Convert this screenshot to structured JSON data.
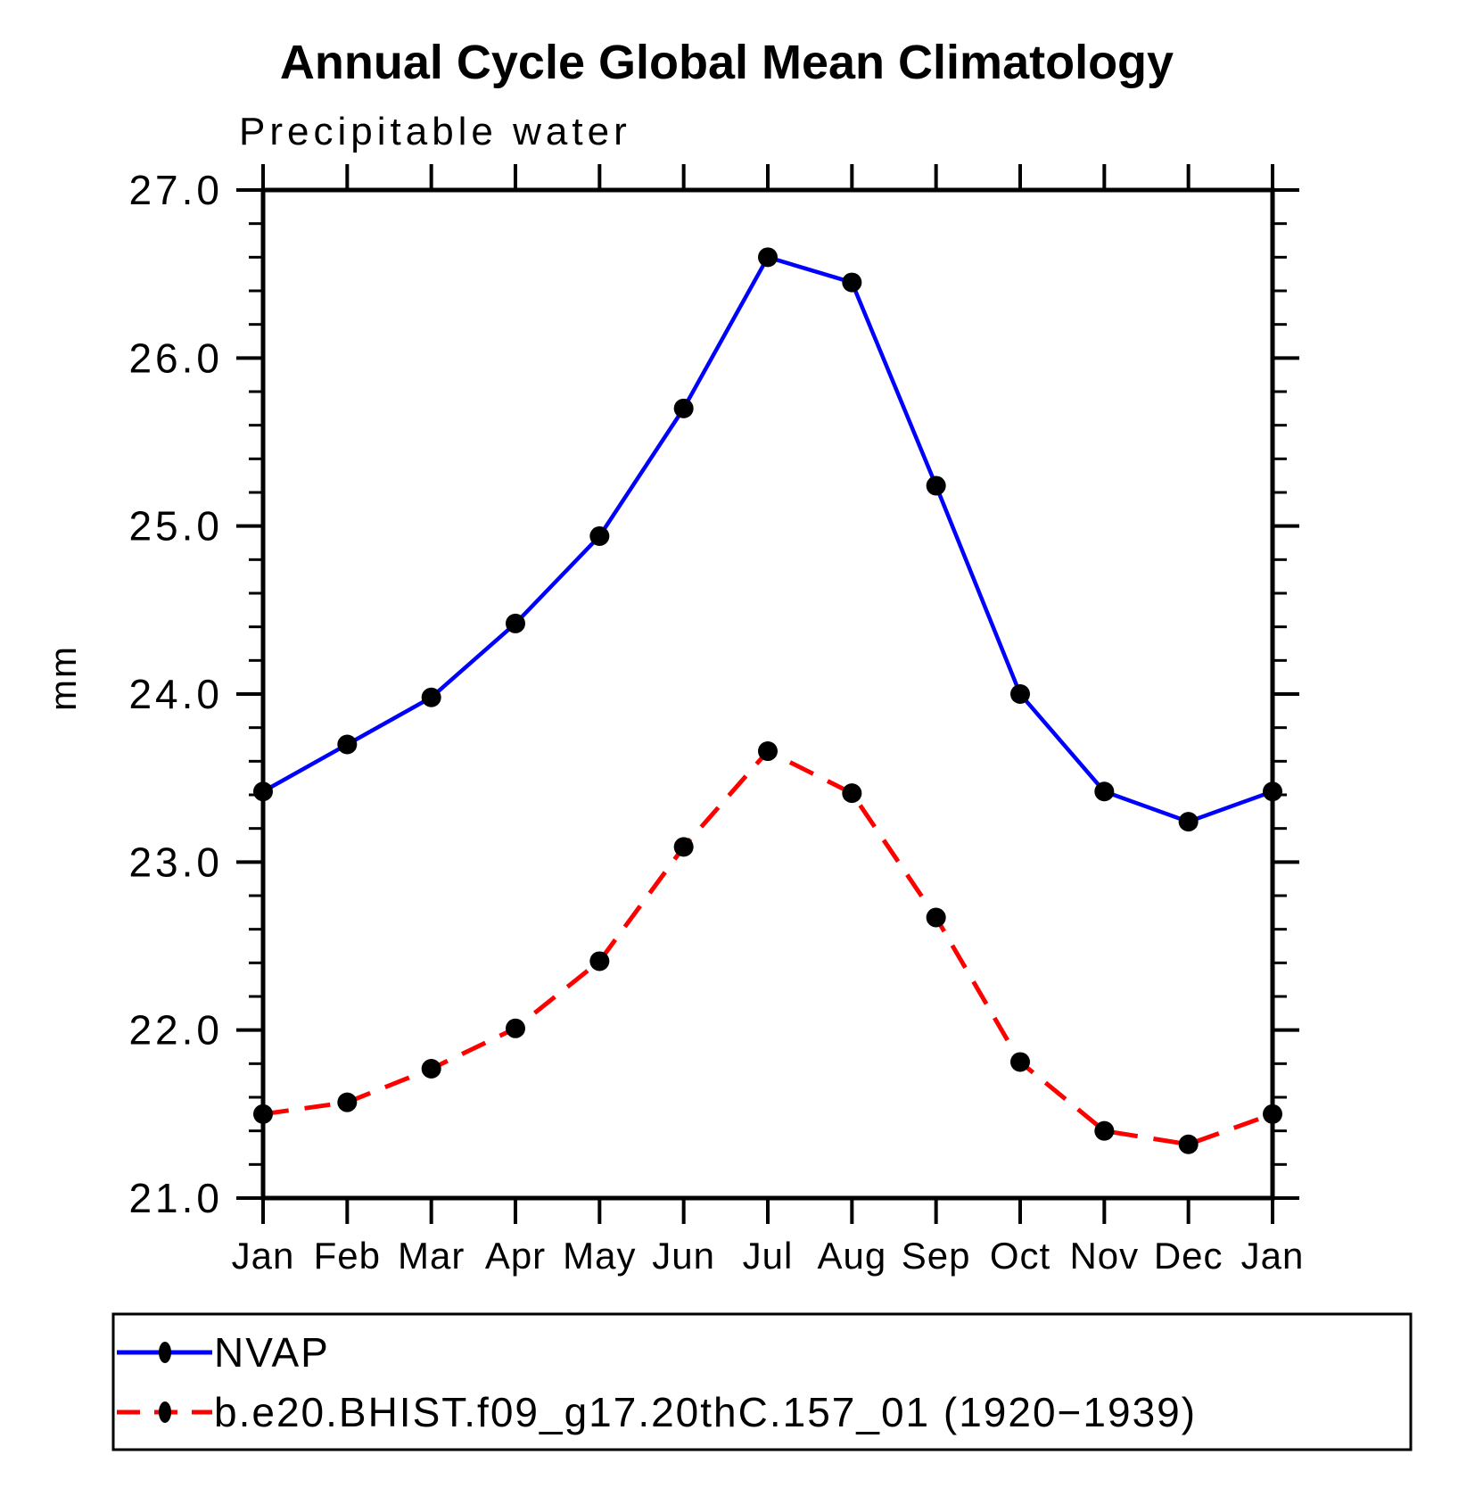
{
  "chart_data": {
    "type": "line",
    "title": "Annual Cycle Global Mean Climatology",
    "subtitle": "Precipitable water",
    "ylabel": "mm",
    "ylim": [
      21.0,
      27.0
    ],
    "ytick_major_interval": 1.0,
    "ytick_minor_interval": 0.2,
    "ytick_labels": [
      "21.0",
      "22.0",
      "23.0",
      "24.0",
      "25.0",
      "26.0",
      "27.0"
    ],
    "categories": [
      "Jan",
      "Feb",
      "Mar",
      "Apr",
      "May",
      "Jun",
      "Jul",
      "Aug",
      "Sep",
      "Oct",
      "Nov",
      "Dec",
      "Jan"
    ],
    "series": [
      {
        "name": "NVAP",
        "color": "#0000ff",
        "line_style": "solid",
        "marker": "filled-circle",
        "marker_color": "#000000",
        "values": [
          23.42,
          23.7,
          23.98,
          24.42,
          24.94,
          25.7,
          26.6,
          26.45,
          25.24,
          24.0,
          23.42,
          23.24,
          23.42
        ]
      },
      {
        "name": "b.e20.BHIST.f09_g17.20thC.157_01 (1920−1939)",
        "color": "#ff0000",
        "line_style": "dashed",
        "marker": "filled-circle",
        "marker_color": "#000000",
        "values": [
          21.5,
          21.57,
          21.77,
          22.01,
          22.41,
          23.09,
          23.66,
          23.41,
          22.67,
          21.81,
          21.4,
          21.32,
          21.5
        ]
      }
    ],
    "grid": "off",
    "legend_position": "bottom-left-box"
  }
}
